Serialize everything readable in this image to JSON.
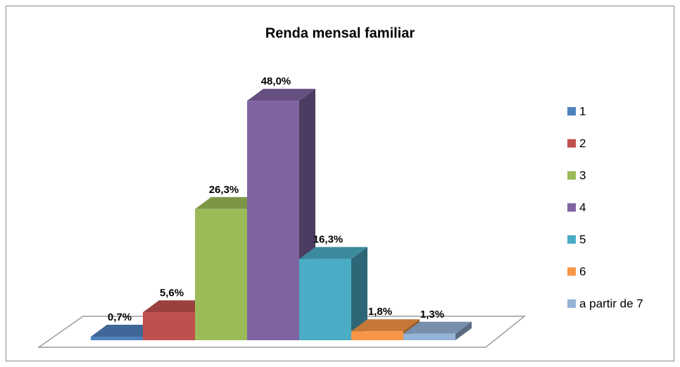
{
  "chart_data": {
    "type": "bar",
    "title": "Renda mensal familiar",
    "categories": [
      "1",
      "2",
      "3",
      "4",
      "5",
      "6",
      "a partir de 7"
    ],
    "values": [
      0.7,
      5.6,
      26.3,
      48.0,
      16.3,
      1.8,
      1.3
    ],
    "value_labels": [
      "0,7%",
      "5,6%",
      "26,3%",
      "48,0%",
      "16,3%",
      "1,8%",
      "1,3%"
    ],
    "colors": [
      "#4f81bd",
      "#c0504d",
      "#9bbb59",
      "#8064a2",
      "#4bacc6",
      "#f79646",
      "#95b3d7"
    ],
    "legend": "right"
  }
}
